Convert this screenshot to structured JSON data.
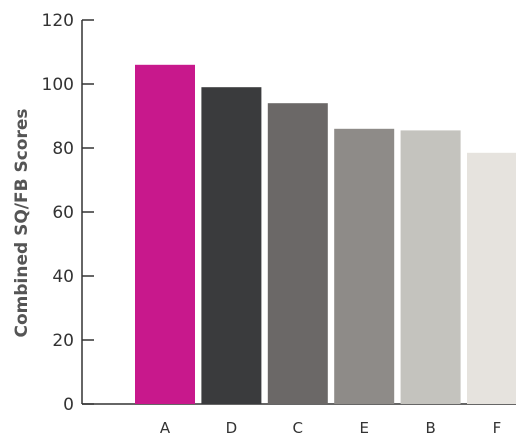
{
  "chart_data": {
    "type": "bar",
    "title": "",
    "xlabel": "",
    "ylabel": "Combined SQ/FB Scores",
    "categories": [
      "A",
      "D",
      "C",
      "E",
      "B",
      "F"
    ],
    "values": [
      106,
      99,
      94,
      86,
      85.5,
      78.5
    ],
    "colors": [
      "#C8188C",
      "#3A3B3D",
      "#6B6867",
      "#8E8B88",
      "#C4C3BE",
      "#E6E3DE"
    ],
    "ylim": [
      0,
      120
    ],
    "yticks": [
      0,
      20,
      40,
      60,
      80,
      100,
      120
    ],
    "grid": false,
    "legend": "none"
  }
}
